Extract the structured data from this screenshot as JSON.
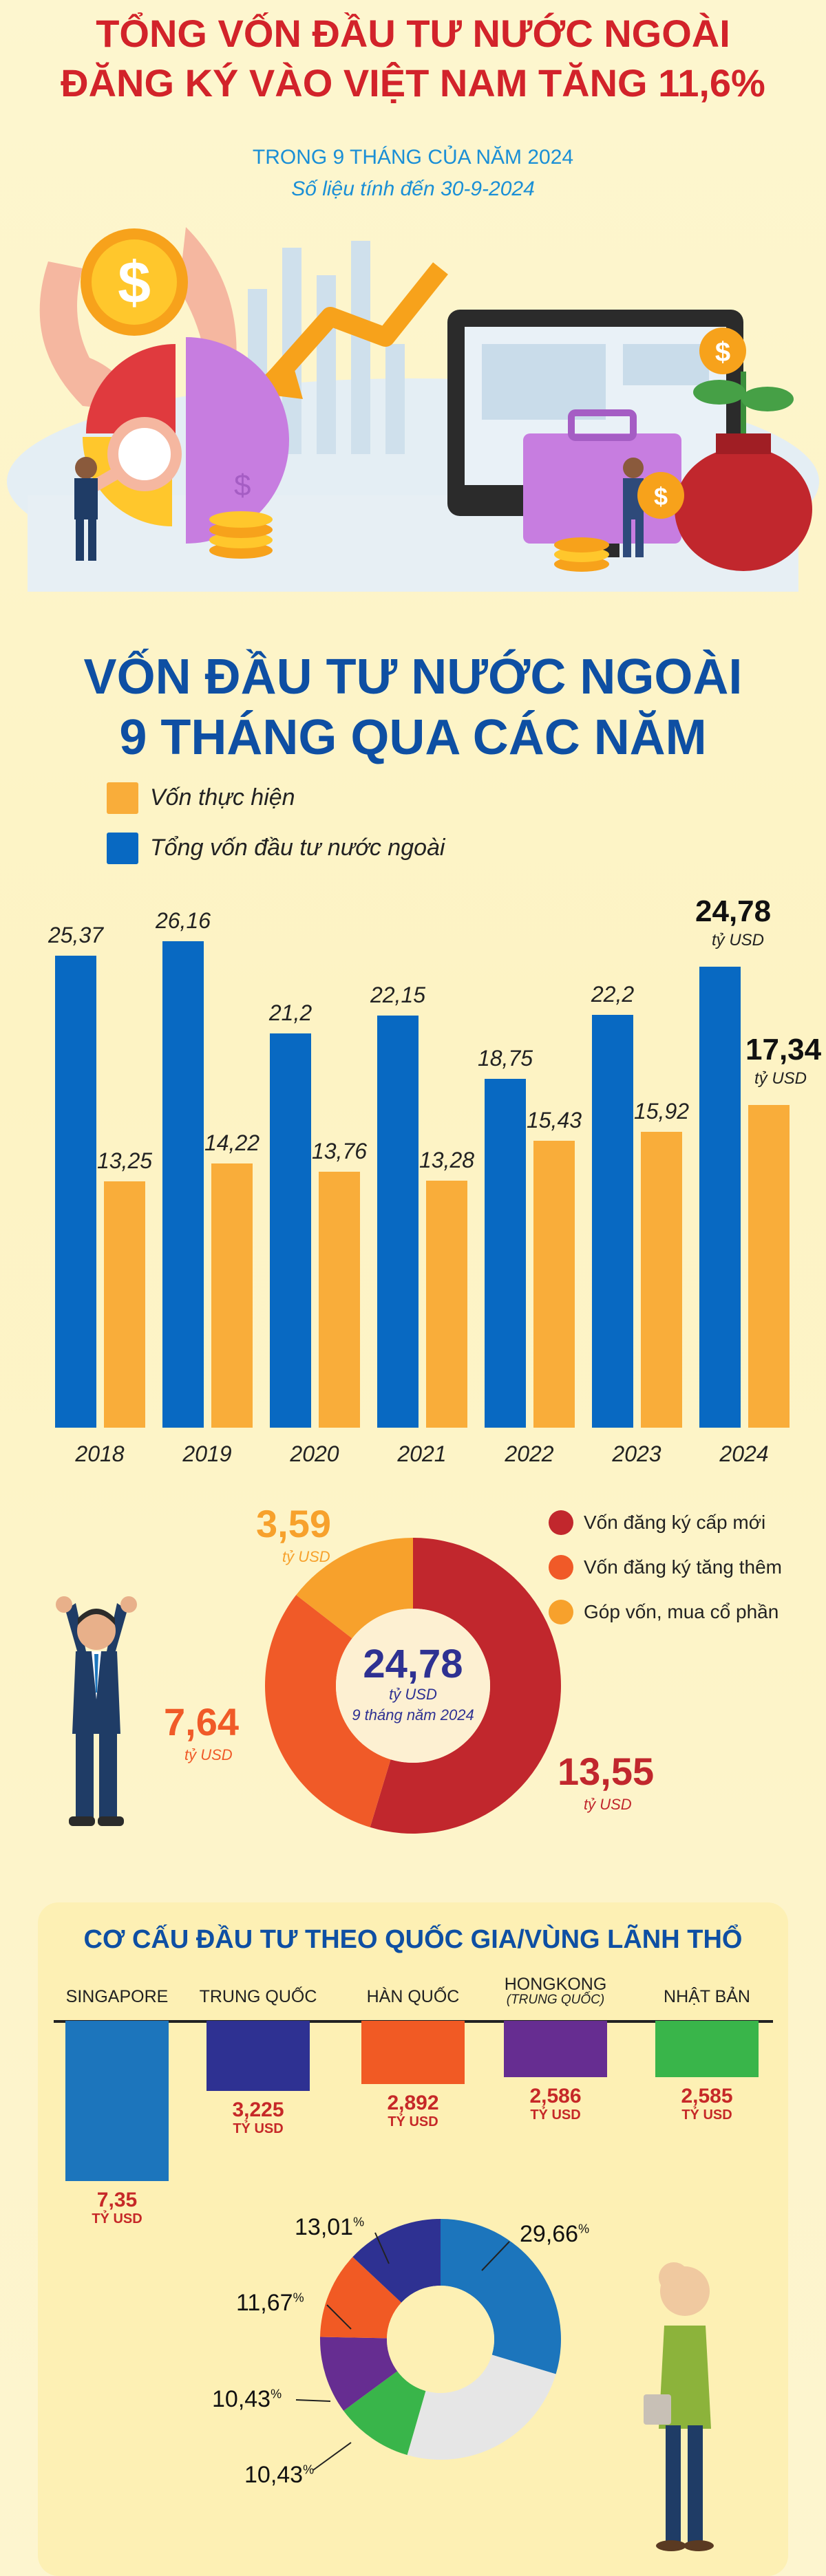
{
  "header": {
    "title_line1": "TỔNG VỐN ĐẦU TƯ NƯỚC NGOÀI",
    "title_line2": "ĐĂNG KÝ VÀO VIỆT NAM TĂNG 11,6%",
    "subtitle": "TRONG 9 THÁNG CỦA NĂM 2024",
    "date_note": "Số liệu tính đến 30-9-2024"
  },
  "section1": {
    "title_line1": "VỐN ĐẦU TƯ NƯỚC NGOÀI",
    "title_line2": "9 THÁNG QUA CÁC NĂM",
    "legend_realized": "Vốn thực hiện",
    "legend_total": "Tổng vốn đầu tư nước ngoài",
    "unit": "tỷ USD",
    "colors": {
      "total": "#0869c2",
      "realized": "#f9ad3a"
    }
  },
  "chart_data": [
    {
      "type": "bar",
      "categories": [
        "2018",
        "2019",
        "2020",
        "2021",
        "2022",
        "2023",
        "2024"
      ],
      "series": [
        {
          "name": "Tổng vốn đầu tư nước ngoài",
          "values": [
            25.37,
            26.16,
            21.2,
            22.15,
            18.75,
            22.2,
            24.78
          ],
          "labels": [
            "25,37",
            "26,16",
            "21,2",
            "22,15",
            "18,75",
            "22,2",
            "24,78"
          ]
        },
        {
          "name": "Vốn thực hiện",
          "values": [
            13.25,
            14.22,
            13.76,
            13.28,
            15.43,
            15.92,
            17.34
          ],
          "labels": [
            "13,25",
            "14,22",
            "13,76",
            "13,28",
            "15,43",
            "15,92",
            "17,34"
          ]
        }
      ],
      "ylim": [
        0,
        26.16
      ],
      "grid": false,
      "legend": "top-left"
    },
    {
      "type": "pie",
      "center_value": "24,78",
      "center_unit": "tỷ USD",
      "center_note": "9 tháng năm 2024",
      "slices": [
        {
          "name": "Vốn đăng ký cấp mới",
          "value": 13.55,
          "label": "13,55",
          "color": "#c1272d"
        },
        {
          "name": "Vốn đăng ký tăng thêm",
          "value": 7.64,
          "label": "7,64",
          "color": "#f05a28"
        },
        {
          "name": "Góp vốn, mua cổ phần",
          "value": 3.59,
          "label": "3,59",
          "color": "#f7a12c"
        }
      ],
      "unit": "tỷ USD",
      "legend": "right"
    },
    {
      "type": "bar",
      "title": "CƠ CẤU ĐẦU TƯ THEO QUỐC GIA/VÙNG LÃNH THỔ",
      "categories": [
        "SINGAPORE",
        "TRUNG QUỐC",
        "HÀN QUỐC",
        "HONGKONG",
        "NHẬT BẢN"
      ],
      "category_notes": [
        "",
        "",
        "",
        "(TRUNG QUỐC)",
        ""
      ],
      "values": [
        7.35,
        3.225,
        2.892,
        2.586,
        2.585
      ],
      "labels": [
        "7,35",
        "3,225",
        "2,892",
        "2,586",
        "2,585"
      ],
      "unit": "TỶ USD",
      "colors": [
        "#1c75bc",
        "#2e3192",
        "#f15a24",
        "#662d91",
        "#39b54a"
      ]
    },
    {
      "type": "pie",
      "slices": [
        {
          "value": 29.66,
          "label": "29,66",
          "color": "#1c75bc"
        },
        {
          "value": 24.8,
          "label": "",
          "color": "#e6e6e6"
        },
        {
          "value": 10.43,
          "label": "10,43",
          "color": "#39b54a"
        },
        {
          "value": 10.43,
          "label": "10,43",
          "color": "#662d91"
        },
        {
          "value": 11.67,
          "label": "11,67",
          "color": "#f15a24"
        },
        {
          "value": 13.01,
          "label": "13,01",
          "color": "#2e3192"
        }
      ],
      "pct_sign": "%"
    }
  ],
  "icons": [
    "dollar-coin-icon",
    "hand-icon",
    "arrow-down-icon",
    "pie-chart-icon",
    "magnifier-icon",
    "monitor-icon",
    "briefcase-icon",
    "money-bag-icon",
    "businessman-icon",
    "woman-icon"
  ]
}
